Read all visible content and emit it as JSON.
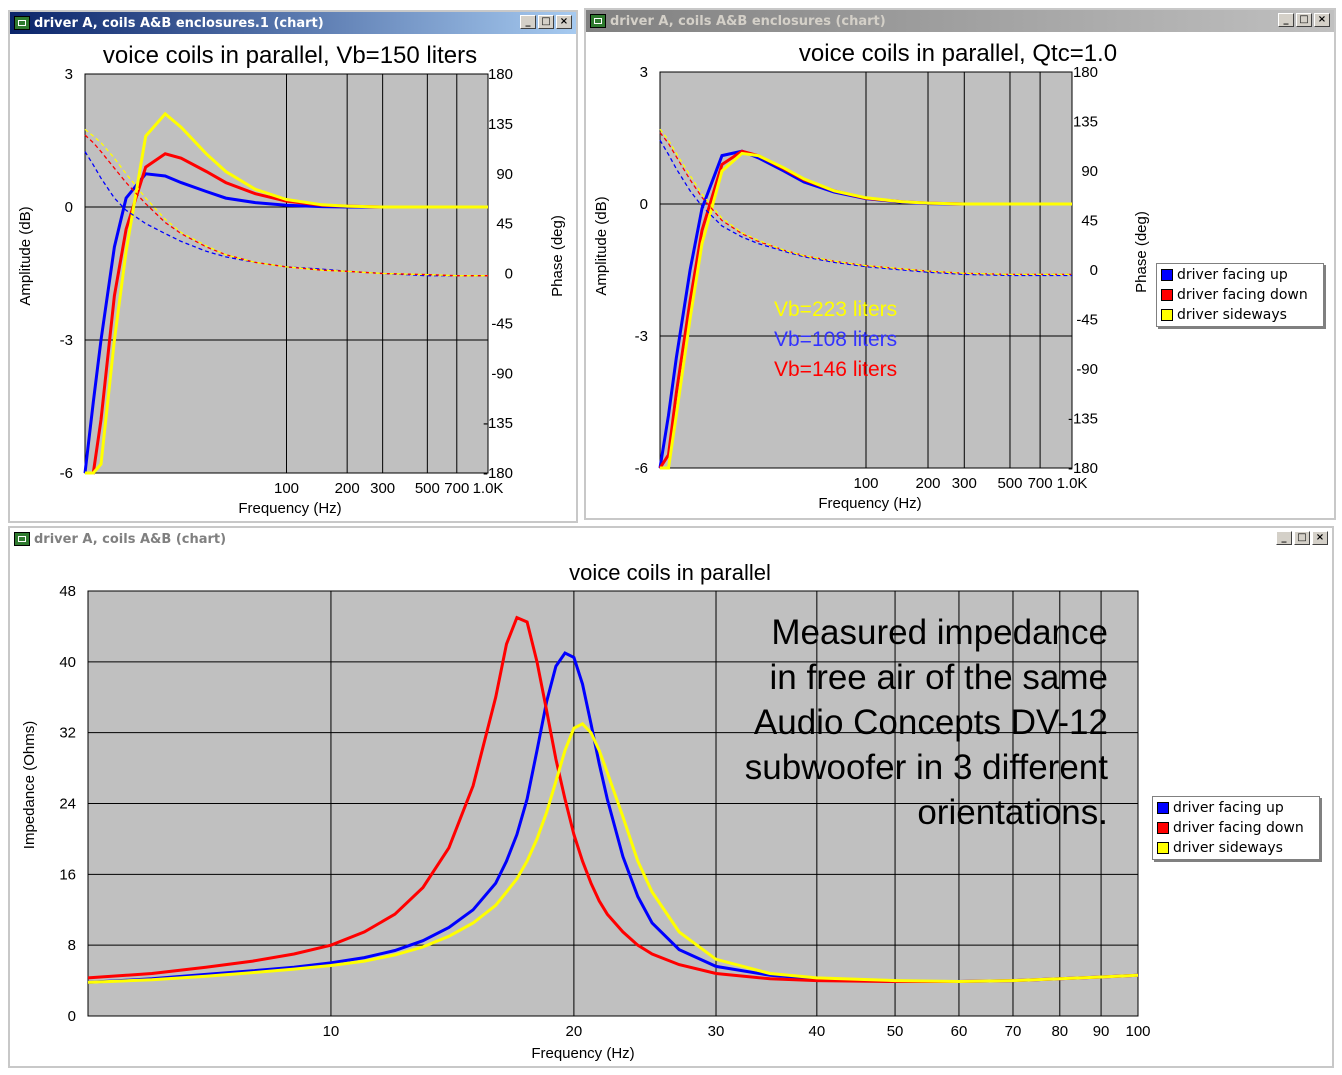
{
  "windows": {
    "top_left": {
      "title": "driver A, coils A&B enclosures.1 (chart)"
    },
    "top_right": {
      "title": "driver A, coils A&B enclosures (chart)"
    },
    "bottom": {
      "title": "driver A, coils A&B (chart)"
    }
  },
  "window_controls": {
    "minimize": "_",
    "maximize": "□",
    "close": "×"
  },
  "colors": {
    "plot_bg": "#c0c0c0",
    "grid": "#000000",
    "blue": "#0000ff",
    "red": "#ff0000",
    "yellow": "#ffff00"
  },
  "notes": {
    "vb_yellow": "Vb=223 liters",
    "vb_blue": "Vb=108 liters",
    "vb_red": "Vb=146 liters",
    "measured": [
      "Measured impedance",
      "in free air of the same",
      "Audio Concepts DV-12",
      "subwoofer in 3 different",
      "orientations."
    ]
  },
  "chart_data": [
    {
      "type": "line",
      "title": "voice coils in parallel, Vb=150 liters",
      "xlabel": "Frequency (Hz)",
      "ylabel": "Amplitude (dB)",
      "y2label": "Phase (deg)",
      "x_scale": "log",
      "xlim": [
        10,
        1000
      ],
      "x_ticks": [
        "100",
        "200",
        "300",
        "500",
        "700",
        "1.0K"
      ],
      "x_tick_values": [
        100,
        200,
        300,
        500,
        700,
        1000
      ],
      "ylim": [
        -6,
        3
      ],
      "y_ticks": [
        "3",
        "0",
        "-3",
        "-6"
      ],
      "y2lim": [
        -180,
        180
      ],
      "y2_ticks": [
        "180",
        "135",
        "90",
        "45",
        "0",
        "-45",
        "-90",
        "-135",
        "-180"
      ],
      "x": [
        10,
        11,
        12,
        14,
        16,
        20,
        25,
        30,
        40,
        50,
        70,
        100,
        150,
        200,
        300,
        500,
        700,
        1000
      ],
      "series": [
        {
          "color": "blue",
          "values": [
            -6.0,
            -4.4,
            -3.0,
            -0.9,
            0.2,
            0.75,
            0.7,
            0.55,
            0.35,
            0.2,
            0.1,
            0.04,
            0.01,
            0.0,
            0.0,
            0.0,
            0.0,
            0.0
          ]
        },
        {
          "color": "red",
          "values": [
            -6.0,
            -6.0,
            -4.8,
            -2.0,
            -0.5,
            0.9,
            1.2,
            1.1,
            0.8,
            0.55,
            0.3,
            0.13,
            0.04,
            0.02,
            0.0,
            0.0,
            0.0,
            0.0
          ]
        },
        {
          "color": "yellow",
          "values": [
            -6.0,
            -6.0,
            -5.8,
            -3.0,
            -1.0,
            1.6,
            2.1,
            1.8,
            1.2,
            0.8,
            0.4,
            0.17,
            0.05,
            0.02,
            0.0,
            0.0,
            0.0,
            0.0
          ]
        },
        {
          "color": "blue",
          "axis": "phase",
          "dashed": true,
          "values": [
            110,
            98,
            86,
            68,
            57,
            45,
            36,
            29,
            20,
            15,
            10,
            6,
            4,
            2,
            0,
            -2,
            -2,
            -2
          ]
        },
        {
          "color": "red",
          "axis": "phase",
          "dashed": true,
          "values": [
            125,
            118,
            110,
            95,
            82,
            63,
            46,
            36,
            24,
            17,
            10,
            6,
            3,
            2,
            0,
            -1,
            -2,
            -2
          ]
        },
        {
          "color": "yellow",
          "axis": "phase",
          "dashed": true,
          "values": [
            130,
            124,
            118,
            104,
            90,
            68,
            49,
            37,
            25,
            17,
            10,
            6,
            3,
            2,
            0,
            -1,
            -2,
            -2
          ]
        }
      ]
    },
    {
      "type": "line",
      "title": "voice coils in parallel, Qtc=1.0",
      "xlabel": "Frequency (Hz)",
      "ylabel": "Amplitude (dB)",
      "y2label": "Phase (deg)",
      "x_scale": "log",
      "xlim": [
        10,
        1000
      ],
      "x_ticks": [
        "100",
        "200",
        "300",
        "500",
        "700",
        "1.0K"
      ],
      "x_tick_values": [
        100,
        200,
        300,
        500,
        700,
        1000
      ],
      "ylim": [
        -6,
        3
      ],
      "y_ticks": [
        "3",
        "0",
        "-3",
        "-6"
      ],
      "y2lim": [
        -180,
        180
      ],
      "y2_ticks": [
        "180",
        "135",
        "90",
        "45",
        "0",
        "-45",
        "-90",
        "-135",
        "-180"
      ],
      "legend": [
        "driver facing up",
        "driver facing down",
        "driver sideways"
      ],
      "legend_colors": [
        "blue",
        "red",
        "yellow"
      ],
      "legend_position": "right",
      "x": [
        10,
        11,
        12,
        14,
        16,
        20,
        25,
        30,
        40,
        50,
        70,
        100,
        150,
        200,
        300,
        500,
        700,
        1000
      ],
      "series": [
        {
          "color": "blue",
          "values": [
            -6.0,
            -4.8,
            -3.5,
            -1.5,
            -0.1,
            1.1,
            1.2,
            1.05,
            0.75,
            0.5,
            0.27,
            0.12,
            0.04,
            0.01,
            0.0,
            0.0,
            0.0,
            0.0
          ]
        },
        {
          "color": "red",
          "values": [
            -6.0,
            -5.7,
            -4.3,
            -2.2,
            -0.6,
            0.9,
            1.2,
            1.1,
            0.8,
            0.55,
            0.3,
            0.13,
            0.05,
            0.02,
            0.0,
            0.0,
            0.0,
            0.0
          ]
        },
        {
          "color": "yellow",
          "values": [
            -6.0,
            -6.0,
            -4.8,
            -2.6,
            -0.9,
            0.75,
            1.15,
            1.1,
            0.82,
            0.57,
            0.3,
            0.14,
            0.05,
            0.02,
            0.0,
            0.0,
            0.0,
            0.0
          ]
        },
        {
          "color": "blue",
          "axis": "phase",
          "dashed": true,
          "values": [
            118,
            105,
            92,
            72,
            58,
            40,
            30,
            24,
            17,
            12,
            7,
            3,
            0,
            -2,
            -4,
            -5,
            -5,
            -5
          ]
        },
        {
          "color": "red",
          "axis": "phase",
          "dashed": true,
          "values": [
            125,
            115,
            103,
            82,
            66,
            45,
            33,
            26,
            18,
            13,
            8,
            4,
            1,
            -1,
            -3,
            -4,
            -4,
            -4
          ]
        },
        {
          "color": "yellow",
          "axis": "phase",
          "dashed": true,
          "values": [
            128,
            118,
            106,
            86,
            69,
            47,
            34,
            27,
            18,
            13,
            8,
            4,
            1,
            -1,
            -3,
            -4,
            -4,
            -4
          ]
        }
      ]
    },
    {
      "type": "line",
      "title": "voice coils in parallel",
      "xlabel": "Frequency (Hz)",
      "ylabel": "Impedance (Ohms)",
      "x_scale": "log",
      "xlim": [
        5,
        100
      ],
      "x_ticks": [
        "10",
        "20",
        "30",
        "40",
        "50",
        "60",
        "70",
        "80",
        "90",
        "100"
      ],
      "x_tick_values": [
        10,
        20,
        30,
        40,
        50,
        60,
        70,
        80,
        90,
        100
      ],
      "ylim": [
        0,
        48
      ],
      "y_ticks": [
        "48",
        "40",
        "32",
        "24",
        "16",
        "8",
        "0"
      ],
      "legend": [
        "driver facing up",
        "driver facing down",
        "driver sideways"
      ],
      "legend_colors": [
        "blue",
        "red",
        "yellow"
      ],
      "legend_position": "right",
      "x": [
        5,
        6,
        7,
        8,
        9,
        10,
        11,
        12,
        13,
        14,
        15,
        16,
        16.5,
        17,
        17.5,
        18,
        18.5,
        19,
        19.5,
        20,
        20.5,
        21,
        21.5,
        22,
        23,
        24,
        25,
        27,
        30,
        35,
        40,
        50,
        60,
        70,
        80,
        90,
        100
      ],
      "series": [
        {
          "color": "blue",
          "values": [
            3.8,
            4.2,
            4.7,
            5.1,
            5.5,
            6.0,
            6.6,
            7.4,
            8.5,
            10.0,
            12.0,
            15.0,
            17.5,
            20.5,
            24.5,
            30.0,
            35.5,
            39.5,
            41.0,
            40.5,
            37.5,
            33.0,
            28.5,
            24.5,
            18.0,
            13.5,
            10.5,
            7.5,
            5.6,
            4.6,
            4.2,
            3.9,
            3.9,
            4.0,
            4.2,
            4.4,
            4.6
          ]
        },
        {
          "color": "red",
          "values": [
            4.3,
            4.8,
            5.5,
            6.2,
            7.0,
            8.0,
            9.5,
            11.5,
            14.5,
            19.0,
            26.0,
            36.0,
            42.0,
            45.0,
            44.5,
            40.0,
            34.5,
            29.0,
            24.5,
            20.5,
            17.5,
            15.0,
            13.0,
            11.5,
            9.5,
            8.0,
            7.0,
            5.8,
            4.8,
            4.2,
            4.0,
            3.9,
            3.9,
            4.0,
            4.2,
            4.4,
            4.6
          ]
        },
        {
          "color": "yellow",
          "values": [
            3.8,
            4.1,
            4.5,
            4.9,
            5.3,
            5.7,
            6.2,
            6.9,
            7.8,
            9.0,
            10.5,
            12.5,
            14.0,
            15.5,
            17.5,
            20.0,
            23.0,
            26.5,
            30.0,
            32.5,
            33.0,
            32.0,
            30.0,
            27.5,
            22.5,
            17.5,
            14.0,
            9.5,
            6.4,
            4.8,
            4.3,
            4.0,
            3.9,
            4.0,
            4.2,
            4.4,
            4.6
          ]
        }
      ]
    }
  ]
}
